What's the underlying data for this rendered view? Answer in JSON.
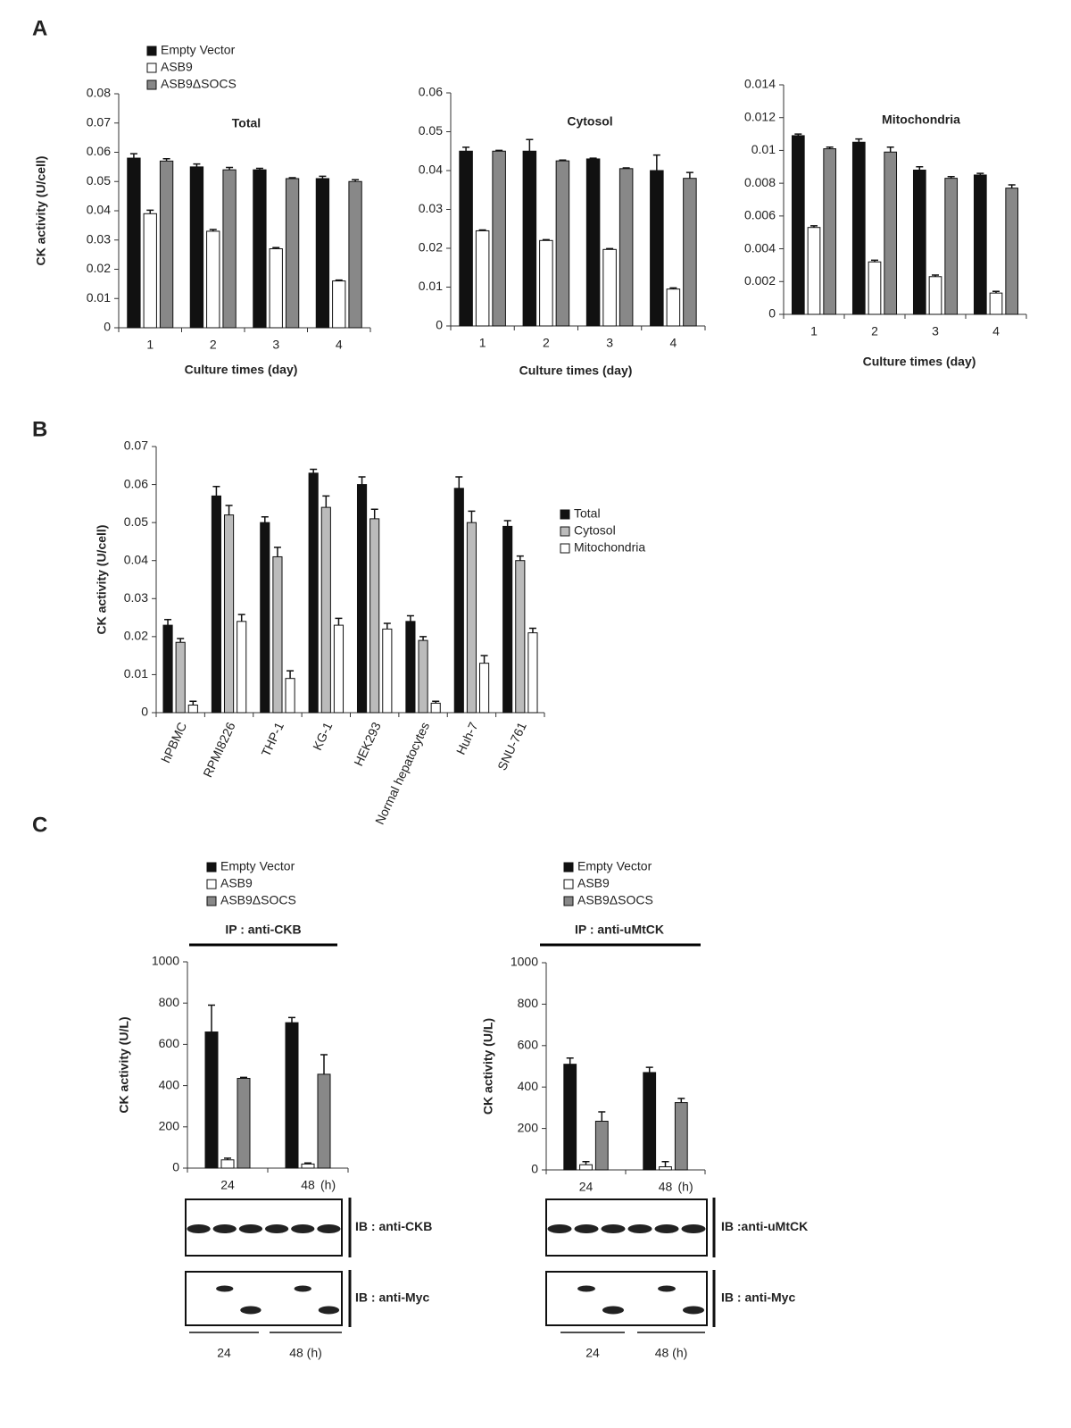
{
  "panel_labels": [
    "A",
    "B",
    "C"
  ],
  "chart_data": [
    {
      "type": "bar",
      "title": "Total",
      "xlabel": "Culture times (day)",
      "ylabel": "CK activity (U/cell)",
      "categories": [
        "1",
        "2",
        "3",
        "4"
      ],
      "ylim": [
        0,
        0.08
      ],
      "yticks": [
        0,
        0.01,
        0.02,
        0.03,
        0.04,
        0.05,
        0.06,
        0.07,
        0.08
      ],
      "series": [
        {
          "name": "Empty Vector",
          "color": "#111111",
          "values": [
            0.058,
            0.055,
            0.054,
            0.051
          ],
          "errors": [
            0.0015,
            0.001,
            0.0005,
            0.0008
          ]
        },
        {
          "name": "ASB9",
          "color": "#ffffff",
          "values": [
            0.039,
            0.033,
            0.027,
            0.016
          ],
          "errors": [
            0.0012,
            0.0006,
            0.0004,
            0.0003
          ]
        },
        {
          "name": "ASB9ΔSOCS",
          "color": "#888888",
          "values": [
            0.057,
            0.054,
            0.051,
            0.05
          ],
          "errors": [
            0.0008,
            0.0008,
            0.0003,
            0.0006
          ]
        }
      ]
    },
    {
      "type": "bar",
      "title": "Cytosol",
      "xlabel": "Culture times (day)",
      "categories": [
        "1",
        "2",
        "3",
        "4"
      ],
      "ylim": [
        0,
        0.06
      ],
      "yticks": [
        0,
        0.01,
        0.02,
        0.03,
        0.04,
        0.05,
        0.06
      ],
      "series": [
        {
          "color": "#111111",
          "values": [
            0.045,
            0.045,
            0.043,
            0.04
          ],
          "errors": [
            0.001,
            0.003,
            0.0002,
            0.004
          ]
        },
        {
          "color": "#ffffff",
          "values": [
            0.0245,
            0.022,
            0.0197,
            0.0095
          ],
          "errors": [
            0.0002,
            0.0002,
            0.0002,
            0.0003
          ]
        },
        {
          "color": "#888888",
          "values": [
            0.045,
            0.0425,
            0.0405,
            0.038
          ],
          "errors": [
            0.0002,
            0.0002,
            0.0002,
            0.0015
          ]
        }
      ]
    },
    {
      "type": "bar",
      "title": "Mitochondria",
      "xlabel": "Culture times (day)",
      "categories": [
        "1",
        "2",
        "3",
        "4"
      ],
      "ylim": [
        0,
        0.014
      ],
      "yticks": [
        0,
        0.002,
        0.004,
        0.006,
        0.008,
        0.01,
        0.012,
        0.014
      ],
      "series": [
        {
          "color": "#111111",
          "values": [
            0.0109,
            0.0105,
            0.0088,
            0.0085
          ],
          "errors": [
            0.0001,
            0.0002,
            0.0002,
            0.0001
          ]
        },
        {
          "color": "#ffffff",
          "values": [
            0.0053,
            0.0032,
            0.0023,
            0.0013
          ],
          "errors": [
            0.0001,
            0.0001,
            0.0001,
            0.0001
          ]
        },
        {
          "color": "#888888",
          "values": [
            0.0101,
            0.0099,
            0.0083,
            0.0077
          ],
          "errors": [
            0.0001,
            0.0003,
            0.0001,
            0.0002
          ]
        }
      ]
    },
    {
      "type": "bar",
      "ylabel": "CK activity (U/cell)",
      "categories": [
        "hPBMC",
        "RPMI8226",
        "THP-1",
        "KG-1",
        "HEK293",
        "Normal hepatocytes",
        "Huh-7",
        "SNU-761"
      ],
      "ylim": [
        0,
        0.07
      ],
      "yticks": [
        0,
        0.01,
        0.02,
        0.03,
        0.04,
        0.05,
        0.06,
        0.07
      ],
      "series": [
        {
          "name": "Total",
          "color": "#111111",
          "values": [
            0.023,
            0.057,
            0.05,
            0.063,
            0.06,
            0.024,
            0.059,
            0.049
          ],
          "errors": [
            0.0015,
            0.0025,
            0.0015,
            0.001,
            0.002,
            0.0015,
            0.003,
            0.0015
          ]
        },
        {
          "name": "Cytosol",
          "color": "#bbbbbb",
          "values": [
            0.0185,
            0.052,
            0.041,
            0.054,
            0.051,
            0.019,
            0.05,
            0.04
          ],
          "errors": [
            0.001,
            0.0025,
            0.0025,
            0.003,
            0.0025,
            0.001,
            0.003,
            0.0012
          ]
        },
        {
          "name": "Mitochondria",
          "color": "#ffffff",
          "values": [
            0.002,
            0.024,
            0.009,
            0.023,
            0.022,
            0.0025,
            0.013,
            0.021
          ],
          "errors": [
            0.001,
            0.0018,
            0.002,
            0.0018,
            0.0015,
            0.0005,
            0.002,
            0.0012
          ]
        }
      ]
    },
    {
      "type": "bar",
      "title": "IP : anti-CKB",
      "ylabel": "CK activity (U/L)",
      "xunit": "(h)",
      "categories": [
        "24",
        "48"
      ],
      "ylim": [
        0,
        1000
      ],
      "yticks": [
        0,
        200,
        400,
        600,
        800,
        1000
      ],
      "series": [
        {
          "name": "Empty Vector",
          "color": "#111111",
          "values": [
            660,
            705
          ],
          "errors": [
            130,
            25
          ]
        },
        {
          "name": "ASB9",
          "color": "#ffffff",
          "values": [
            40,
            20
          ],
          "errors": [
            8,
            5
          ]
        },
        {
          "name": "ASB9ΔSOCS",
          "color": "#888888",
          "values": [
            435,
            455
          ],
          "errors": [
            5,
            95
          ]
        }
      ]
    },
    {
      "type": "bar",
      "title": "IP : anti-uMtCK",
      "ylabel": "CK activity (U/L)",
      "xunit": "(h)",
      "categories": [
        "24",
        "48"
      ],
      "ylim": [
        0,
        1000
      ],
      "yticks": [
        0,
        200,
        400,
        600,
        800,
        1000
      ],
      "series": [
        {
          "name": "Empty Vector",
          "color": "#111111",
          "values": [
            510,
            470
          ],
          "errors": [
            30,
            25
          ]
        },
        {
          "name": "ASB9",
          "color": "#ffffff",
          "values": [
            25,
            15
          ],
          "errors": [
            15,
            25
          ]
        },
        {
          "name": "ASB9ΔSOCS",
          "color": "#888888",
          "values": [
            235,
            325
          ],
          "errors": [
            45,
            20
          ]
        }
      ]
    }
  ],
  "blots": [
    {
      "labels": [
        "IB : anti-CKB",
        "IB : anti-Myc"
      ],
      "lanes": [
        "24",
        "48 (h)"
      ]
    },
    {
      "labels": [
        "IB :anti-uMtCK",
        "IB : anti-Myc"
      ],
      "lanes": [
        "24",
        "48 (h)"
      ]
    }
  ]
}
